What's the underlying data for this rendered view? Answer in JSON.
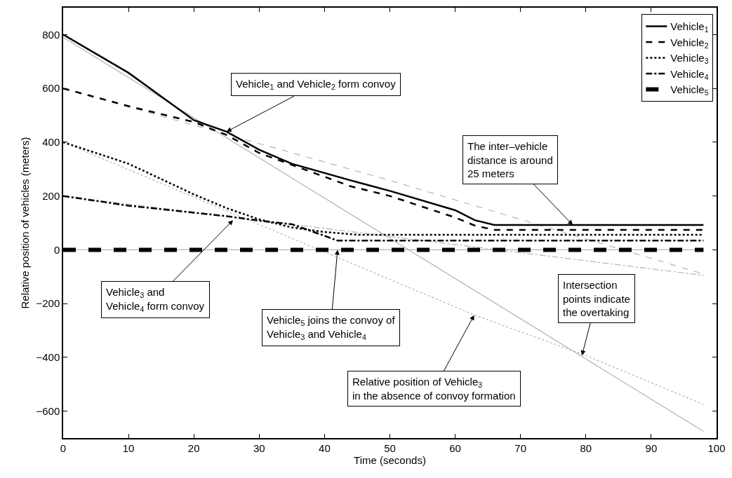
{
  "chart_data": {
    "type": "line",
    "xlabel": "Time (seconds)",
    "ylabel": "Relative position of vehicles (meters)",
    "xlim": [
      0,
      100
    ],
    "xticks": [
      0,
      10,
      20,
      30,
      40,
      50,
      60,
      70,
      80,
      90,
      100
    ],
    "ylim": [
      -700,
      900
    ],
    "yticks": [
      -600,
      -400,
      -200,
      0,
      200,
      400,
      600,
      800
    ],
    "legend": "top right",
    "marker": "none",
    "series": [
      {
        "name": "Vehicle$_{1}$",
        "color": "#000000",
        "line_style": "solid",
        "x": [
          0,
          10,
          20,
          25,
          30,
          35,
          44,
          50,
          60,
          63,
          66,
          98
        ],
        "values": [
          800,
          658,
          482,
          439,
          372,
          320,
          258,
          219,
          147,
          110,
          92,
          92
        ]
      },
      {
        "name": "Vehicle$_{2}$",
        "color": "#000000",
        "line_style": "dashed",
        "x": [
          0,
          10,
          20,
          25,
          30,
          44,
          50,
          60,
          63,
          66,
          98
        ],
        "values": [
          600,
          534,
          475,
          427,
          360,
          236,
          200,
          120,
          90,
          74,
          74
        ]
      },
      {
        "name": "Vehicle$_{3}$",
        "color": "#000000",
        "line_style": "dotted",
        "x": [
          0,
          10,
          20,
          25,
          30,
          35,
          40,
          45,
          98
        ],
        "values": [
          400,
          320,
          206,
          155,
          113,
          83,
          66,
          56,
          56
        ]
      },
      {
        "name": "Vehicle$_{4}$",
        "color": "#000000",
        "line_style": "dashdot",
        "x": [
          0,
          10,
          20,
          25,
          30,
          35,
          40,
          42,
          98
        ],
        "values": [
          200,
          164,
          138,
          125,
          108,
          95,
          52,
          34,
          34
        ]
      },
      {
        "name": "Vehicle$_{5}$",
        "color": "#000000",
        "line_style": "dashed",
        "x": [
          0,
          98
        ],
        "values": [
          0,
          0
        ]
      },
      {
        "color": "#b4b4b4",
        "line_style": "solid",
        "x": [
          0,
          98
        ],
        "values": [
          790,
          -675
        ]
      },
      {
        "color": "#b4b4b4",
        "line_style": "dashed",
        "x": [
          0,
          50,
          98
        ],
        "values": [
          600,
          258,
          -90
        ]
      },
      {
        "color": "#b4b4b4",
        "line_style": "dotted",
        "x": [
          0,
          63,
          80,
          98
        ],
        "values": [
          400,
          -243,
          -393,
          -575
        ]
      },
      {
        "color": "#b4b4b4",
        "line_style": "dashdot",
        "x": [
          0,
          98
        ],
        "values": [
          200,
          -95
        ]
      },
      {
        "color": "#b4b4b4",
        "line_style": "solid",
        "x": [
          0,
          98
        ],
        "values": [
          0,
          0
        ]
      }
    ],
    "annotations": [
      {
        "text": "Vehicle$_{1}$ and Vehicle$_{2}$ form convoy",
        "x": 25,
        "y": 439
      },
      {
        "text": "The inter–vehicle\ndistance is around\n25 meters",
        "x": 78,
        "y": 92
      },
      {
        "text": "Vehicle$_{3}$ and\nVehicle$_{4}$ form convoy",
        "x": 26,
        "y": 110
      },
      {
        "text": "Vehicle$_{5}$ joins the convoy of\nVehicle$_{3}$ and Vehicle$_{4}$",
        "x": 42,
        "y": 0
      },
      {
        "text": "Relative position of Vehicle$_{3}$\nin the absence of convoy formation",
        "x": 62.9,
        "y": -243
      },
      {
        "text": "Intersection\npoints indicate\nthe overtaking",
        "x": 79.4,
        "y": -393
      }
    ]
  }
}
